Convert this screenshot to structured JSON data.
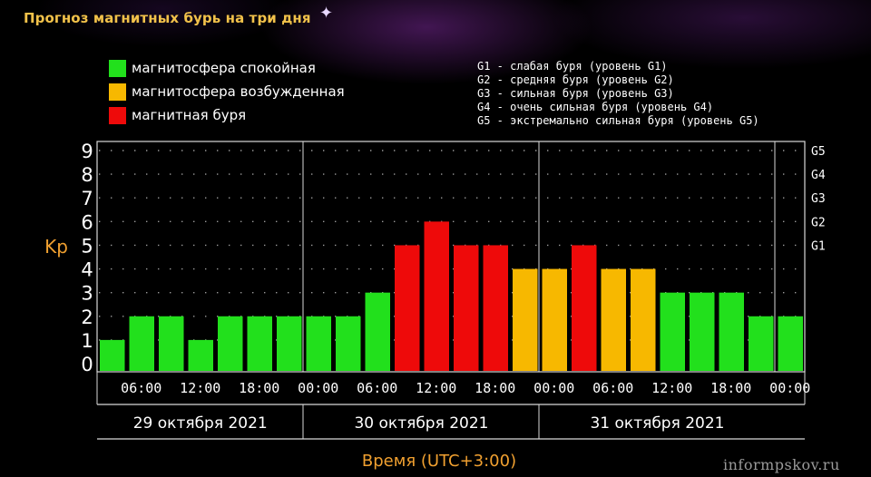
{
  "title": "Прогноз магнитных бурь на три дня",
  "legend": [
    {
      "label": "магнитосфера спокойная",
      "color": "#22e01c"
    },
    {
      "label": "магнитосфера возбужденная",
      "color": "#f7b800"
    },
    {
      "label": "магнитная буря",
      "color": "#ee0a0a"
    }
  ],
  "g_legend": [
    "G1 - слабая буря (уровень G1)",
    "G2 - средняя буря (уровень G2)",
    "G3 - сильная буря (уровень G3)",
    "G4 - очень сильная буря (уровень G4)",
    "G5 - экстремально сильная буря (уровень G5)"
  ],
  "chart_data": {
    "type": "bar",
    "title": "Прогноз магнитных бурь на три дня",
    "ylabel": "Kp",
    "xlabel": "Время (UTC+3:00)",
    "ylim": [
      0,
      9
    ],
    "y_ticks": [
      "0",
      "1",
      "2",
      "3",
      "4",
      "5",
      "6",
      "7",
      "8",
      "9"
    ],
    "right_ticks": [
      {
        "value": 5,
        "label": "G1"
      },
      {
        "value": 6,
        "label": "G2"
      },
      {
        "value": 7,
        "label": "G3"
      },
      {
        "value": 8,
        "label": "G4"
      },
      {
        "value": 9,
        "label": "G5"
      }
    ],
    "x_tick_labels": [
      "06:00",
      "12:00",
      "18:00",
      "00:00",
      "06:00",
      "12:00",
      "18:00",
      "00:00",
      "06:00",
      "12:00",
      "18:00",
      "00:00"
    ],
    "days": [
      "29 октября 2021",
      "30 октября 2021",
      "31 октября 2021"
    ],
    "values": [
      1,
      2,
      2,
      1,
      2,
      2,
      2,
      2,
      2,
      3,
      5,
      6,
      5,
      5,
      4,
      4,
      5,
      4,
      4,
      3,
      3,
      3,
      2,
      2
    ],
    "colors": {
      "quiet": "#22e01c",
      "excited": "#f7b800",
      "storm": "#ee0a0a"
    },
    "grid": "dotted"
  },
  "watermark": "informpskov.ru"
}
